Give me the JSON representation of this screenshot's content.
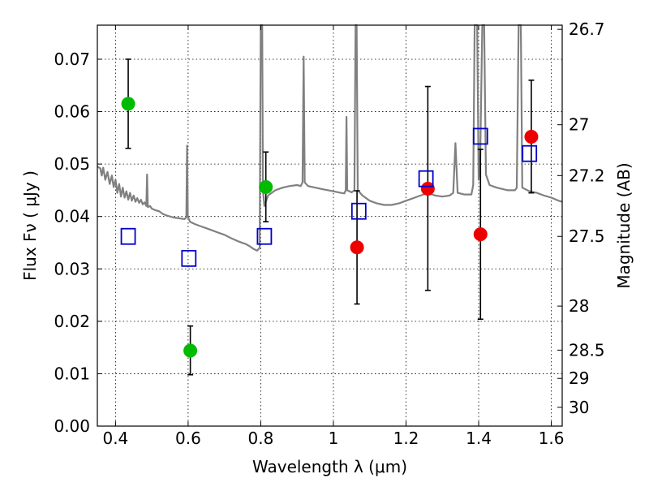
{
  "chart_data": {
    "type": "scatter",
    "xlabel": "Wavelength  λ (μm)",
    "ylabel_left": "Flux  Fν  ( μJy )",
    "ylabel_right": "Magnitude (AB)",
    "xlim": [
      0.35,
      1.63
    ],
    "ylim": [
      0.0,
      0.0765
    ],
    "grid": true,
    "x_ticks": [
      0.4,
      0.6,
      0.8,
      1,
      1.2,
      1.4,
      1.6
    ],
    "x_tick_labels": [
      "0.4",
      "0.6",
      "0.8",
      "1",
      "1.2",
      "1.4",
      "1.6"
    ],
    "y_ticks": [
      0.0,
      0.01,
      0.02,
      0.03,
      0.04,
      0.05,
      0.06,
      0.07
    ],
    "y_tick_labels": [
      "0.00",
      "0.01",
      "0.02",
      "0.03",
      "0.04",
      "0.05",
      "0.06",
      "0.07"
    ],
    "mag_ticks": [
      {
        "label": "26.7",
        "flux": 0.0757
      },
      {
        "label": "27",
        "flux": 0.0575
      },
      {
        "label": "27.2",
        "flux": 0.0478
      },
      {
        "label": "27.5",
        "flux": 0.0362
      },
      {
        "label": "28",
        "flux": 0.0229
      },
      {
        "label": "28.5",
        "flux": 0.0145
      },
      {
        "label": "29",
        "flux": 0.0091
      },
      {
        "label": "30",
        "flux": 0.0036
      }
    ],
    "series": [
      {
        "marker": "circle",
        "color": "#00bb00",
        "points": [
          {
            "x": 0.435,
            "y": 0.0615,
            "yerr_low": 0.053,
            "yerr_high": 0.07
          },
          {
            "x": 0.606,
            "y": 0.0144,
            "yerr_low": 0.0098,
            "yerr_high": 0.0191
          },
          {
            "x": 0.814,
            "y": 0.0456,
            "yerr_low": 0.039,
            "yerr_high": 0.0523
          }
        ]
      },
      {
        "marker": "circle",
        "color": "#ee0000",
        "points": [
          {
            "x": 1.065,
            "y": 0.0341,
            "yerr_low": 0.0233,
            "yerr_high": 0.0449
          },
          {
            "x": 1.26,
            "y": 0.0453,
            "yerr_low": 0.0259,
            "yerr_high": 0.0648
          },
          {
            "x": 1.405,
            "y": 0.0366,
            "yerr_low": 0.0204,
            "yerr_high": 0.0528
          },
          {
            "x": 1.545,
            "y": 0.0552,
            "yerr_low": 0.0445,
            "yerr_high": 0.066
          }
        ]
      },
      {
        "marker": "open-square",
        "color": "#0000cc",
        "points": [
          {
            "x": 0.435,
            "y": 0.0362
          },
          {
            "x": 0.602,
            "y": 0.032
          },
          {
            "x": 0.81,
            "y": 0.0362
          },
          {
            "x": 1.07,
            "y": 0.041
          },
          {
            "x": 1.255,
            "y": 0.0472
          },
          {
            "x": 1.405,
            "y": 0.0553
          },
          {
            "x": 1.54,
            "y": 0.052
          }
        ]
      },
      {
        "marker": "line",
        "color": "#808080",
        "points": [
          [
            0.35,
            0.0495
          ],
          [
            0.358,
            0.0492
          ],
          [
            0.362,
            0.0478
          ],
          [
            0.366,
            0.0493
          ],
          [
            0.372,
            0.047
          ],
          [
            0.378,
            0.0485
          ],
          [
            0.384,
            0.0462
          ],
          [
            0.39,
            0.0478
          ],
          [
            0.395,
            0.0456
          ],
          [
            0.4,
            0.047
          ],
          [
            0.405,
            0.0445
          ],
          [
            0.41,
            0.0462
          ],
          [
            0.415,
            0.0438
          ],
          [
            0.42,
            0.0455
          ],
          [
            0.425,
            0.0436
          ],
          [
            0.43,
            0.0448
          ],
          [
            0.435,
            0.0432
          ],
          [
            0.44,
            0.0445
          ],
          [
            0.445,
            0.043
          ],
          [
            0.45,
            0.044
          ],
          [
            0.455,
            0.0428
          ],
          [
            0.46,
            0.0435
          ],
          [
            0.465,
            0.0426
          ],
          [
            0.47,
            0.0432
          ],
          [
            0.475,
            0.0423
          ],
          [
            0.48,
            0.0427
          ],
          [
            0.485,
            0.042
          ],
          [
            0.487,
            0.048
          ],
          [
            0.489,
            0.0418
          ],
          [
            0.495,
            0.042
          ],
          [
            0.5,
            0.0415
          ],
          [
            0.51,
            0.0412
          ],
          [
            0.52,
            0.041
          ],
          [
            0.53,
            0.0405
          ],
          [
            0.54,
            0.0402
          ],
          [
            0.55,
            0.04
          ],
          [
            0.56,
            0.0398
          ],
          [
            0.57,
            0.0397
          ],
          [
            0.58,
            0.0396
          ],
          [
            0.59,
            0.0395
          ],
          [
            0.595,
            0.0398
          ],
          [
            0.597,
            0.0535
          ],
          [
            0.599,
            0.04
          ],
          [
            0.605,
            0.039
          ],
          [
            0.62,
            0.0385
          ],
          [
            0.64,
            0.038
          ],
          [
            0.66,
            0.0375
          ],
          [
            0.68,
            0.037
          ],
          [
            0.7,
            0.0365
          ],
          [
            0.72,
            0.0358
          ],
          [
            0.74,
            0.0352
          ],
          [
            0.76,
            0.0347
          ],
          [
            0.77,
            0.0343
          ],
          [
            0.78,
            0.0338
          ],
          [
            0.79,
            0.0335
          ],
          [
            0.797,
            0.034
          ],
          [
            0.8,
            0.0765
          ],
          [
            0.804,
            0.0765
          ],
          [
            0.806,
            0.045
          ],
          [
            0.81,
            0.042
          ],
          [
            0.82,
            0.044
          ],
          [
            0.84,
            0.045
          ],
          [
            0.86,
            0.0455
          ],
          [
            0.88,
            0.0458
          ],
          [
            0.9,
            0.046
          ],
          [
            0.91,
            0.0458
          ],
          [
            0.915,
            0.0465
          ],
          [
            0.918,
            0.0705
          ],
          [
            0.921,
            0.0465
          ],
          [
            0.93,
            0.0458
          ],
          [
            0.95,
            0.0455
          ],
          [
            0.97,
            0.0452
          ],
          [
            1.0,
            0.0448
          ],
          [
            1.02,
            0.0445
          ],
          [
            1.03,
            0.0444
          ],
          [
            1.034,
            0.045
          ],
          [
            1.036,
            0.059
          ],
          [
            1.038,
            0.045
          ],
          [
            1.05,
            0.0446
          ],
          [
            1.058,
            0.045
          ],
          [
            1.061,
            0.0765
          ],
          [
            1.064,
            0.0765
          ],
          [
            1.067,
            0.045
          ],
          [
            1.08,
            0.044
          ],
          [
            1.1,
            0.043
          ],
          [
            1.12,
            0.0425
          ],
          [
            1.14,
            0.0422
          ],
          [
            1.16,
            0.0422
          ],
          [
            1.18,
            0.0425
          ],
          [
            1.2,
            0.043
          ],
          [
            1.22,
            0.0435
          ],
          [
            1.24,
            0.044
          ],
          [
            1.26,
            0.0445
          ],
          [
            1.28,
            0.044
          ],
          [
            1.3,
            0.0438
          ],
          [
            1.32,
            0.044
          ],
          [
            1.33,
            0.0445
          ],
          [
            1.336,
            0.054
          ],
          [
            1.342,
            0.0445
          ],
          [
            1.36,
            0.0442
          ],
          [
            1.38,
            0.0442
          ],
          [
            1.385,
            0.046
          ],
          [
            1.389,
            0.0765
          ],
          [
            1.396,
            0.0765
          ],
          [
            1.4,
            0.047
          ],
          [
            1.404,
            0.05
          ],
          [
            1.41,
            0.0765
          ],
          [
            1.415,
            0.0765
          ],
          [
            1.42,
            0.048
          ],
          [
            1.43,
            0.046
          ],
          [
            1.45,
            0.0455
          ],
          [
            1.48,
            0.045
          ],
          [
            1.5,
            0.045
          ],
          [
            1.505,
            0.0455
          ],
          [
            1.51,
            0.0765
          ],
          [
            1.516,
            0.0765
          ],
          [
            1.52,
            0.0455
          ],
          [
            1.54,
            0.0448
          ],
          [
            1.56,
            0.0445
          ],
          [
            1.58,
            0.044
          ],
          [
            1.6,
            0.0436
          ],
          [
            1.62,
            0.043
          ],
          [
            1.63,
            0.0428
          ]
        ]
      }
    ]
  }
}
